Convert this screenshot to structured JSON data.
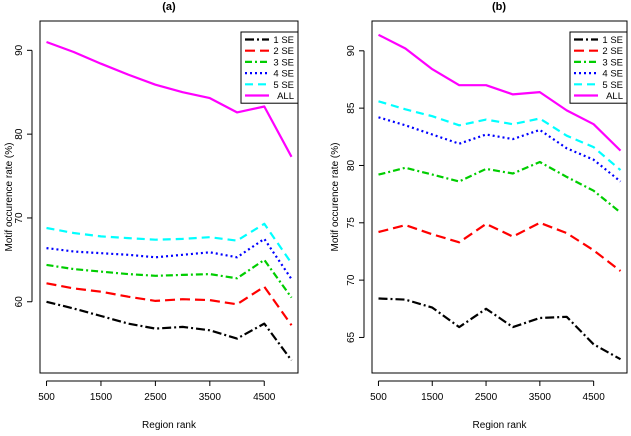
{
  "chart_data": [
    {
      "type": "line",
      "panel_label": "(a)",
      "xlabel": "Region rank",
      "ylabel": "Motif occurence rate (%)",
      "x": [
        500,
        1000,
        1500,
        2000,
        2500,
        3000,
        3500,
        4000,
        4500,
        5000
      ],
      "xlim": [
        380,
        5120
      ],
      "xticks": [
        500,
        1500,
        2500,
        3500,
        4500
      ],
      "ylim": [
        51.5,
        93.5
      ],
      "yticks": [
        60,
        70,
        80,
        90
      ],
      "legend_position": "top-right",
      "series": [
        {
          "name": "1 SE",
          "color": "#000000",
          "dash": "9,3,2,3",
          "values": [
            60.0,
            59.2,
            58.3,
            57.4,
            56.8,
            57.0,
            56.6,
            55.6,
            57.4,
            53.0
          ]
        },
        {
          "name": "2 SE",
          "color": "#ff0000",
          "dash": "10,5",
          "values": [
            62.2,
            61.6,
            61.2,
            60.6,
            60.1,
            60.3,
            60.2,
            59.7,
            61.8,
            57.2
          ]
        },
        {
          "name": "3 SE",
          "color": "#00cd00",
          "dash": "7,3,2,3",
          "values": [
            64.4,
            63.9,
            63.6,
            63.3,
            63.1,
            63.2,
            63.3,
            62.8,
            65.0,
            60.5
          ]
        },
        {
          "name": "4 SE",
          "color": "#0000ff",
          "dash": "2,3",
          "values": [
            66.4,
            66.0,
            65.8,
            65.6,
            65.3,
            65.6,
            65.9,
            65.3,
            67.5,
            62.7
          ]
        },
        {
          "name": "5 SE",
          "color": "#00ffff",
          "dash": "8,5",
          "values": [
            68.8,
            68.2,
            67.8,
            67.6,
            67.4,
            67.5,
            67.7,
            67.3,
            69.3,
            64.6
          ]
        },
        {
          "name": "ALL",
          "color": "#ff00ff",
          "dash": "",
          "values": [
            91.0,
            89.8,
            88.4,
            87.1,
            85.9,
            85.0,
            84.3,
            82.6,
            83.3,
            77.3
          ]
        }
      ]
    },
    {
      "type": "line",
      "panel_label": "(b)",
      "xlabel": "Region rank",
      "ylabel": "Motif occurence rate (%)",
      "x": [
        500,
        1000,
        1500,
        2000,
        2500,
        3000,
        3500,
        4000,
        4500,
        5000
      ],
      "xlim": [
        380,
        5120
      ],
      "xticks": [
        500,
        1500,
        2500,
        3500,
        4500
      ],
      "ylim": [
        61.9,
        92.6
      ],
      "yticks": [
        65,
        70,
        75,
        80,
        85,
        90
      ],
      "legend_position": "top-right",
      "series": [
        {
          "name": "1 SE",
          "color": "#000000",
          "dash": "9,3,2,3",
          "values": [
            68.4,
            68.3,
            67.6,
            65.9,
            67.5,
            65.9,
            66.7,
            66.8,
            64.4,
            63.1
          ]
        },
        {
          "name": "2 SE",
          "color": "#ff0000",
          "dash": "10,5",
          "values": [
            74.2,
            74.8,
            74.0,
            73.3,
            74.9,
            73.8,
            75.0,
            74.1,
            72.6,
            70.8
          ]
        },
        {
          "name": "3 SE",
          "color": "#00cd00",
          "dash": "7,3,2,3",
          "values": [
            79.2,
            79.8,
            79.2,
            78.6,
            79.7,
            79.3,
            80.3,
            79.0,
            77.8,
            75.9
          ]
        },
        {
          "name": "4 SE",
          "color": "#0000ff",
          "dash": "2,3",
          "values": [
            84.2,
            83.5,
            82.7,
            81.9,
            82.7,
            82.3,
            83.1,
            81.5,
            80.5,
            78.6
          ]
        },
        {
          "name": "5 SE",
          "color": "#00ffff",
          "dash": "8,5",
          "values": [
            85.6,
            84.9,
            84.3,
            83.5,
            84.0,
            83.6,
            84.1,
            82.6,
            81.6,
            79.6
          ]
        },
        {
          "name": "ALL",
          "color": "#ff00ff",
          "dash": "",
          "values": [
            91.4,
            90.2,
            88.4,
            87.0,
            87.0,
            86.2,
            86.4,
            84.8,
            83.6,
            81.3
          ]
        }
      ]
    }
  ]
}
